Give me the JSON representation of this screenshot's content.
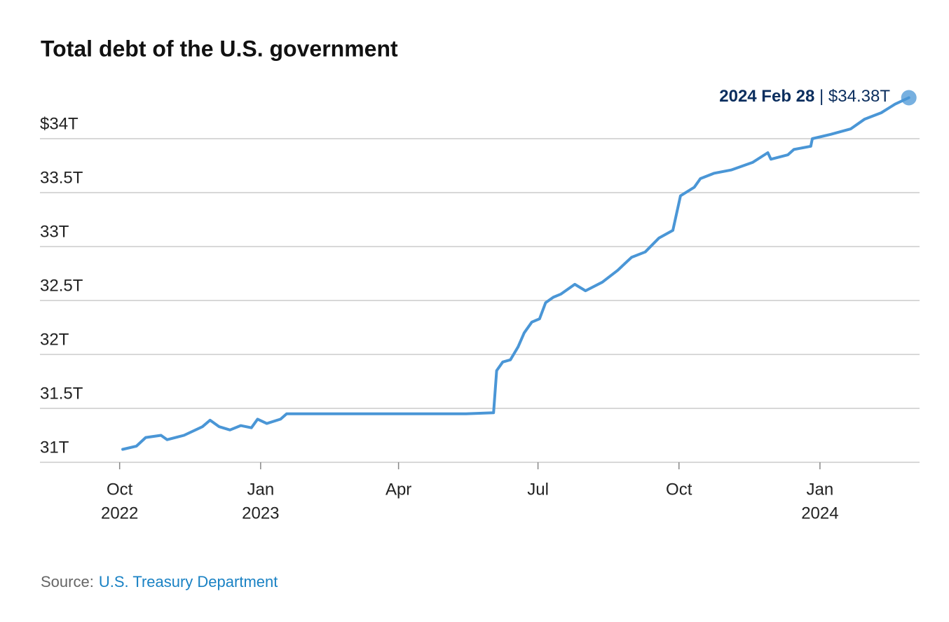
{
  "chart_data": {
    "type": "line",
    "title": "Total debt of the U.S. government",
    "annotation": {
      "date_label": "2024 Feb 28",
      "value_label": "$34.38T"
    },
    "source": {
      "label": "Source:",
      "text": "U.S. Treasury Department"
    },
    "xlim": [
      "2022-08-10",
      "2024-03-06"
    ],
    "xticks": [
      {
        "value": "2022-10-01",
        "label": "Oct",
        "year": "2022"
      },
      {
        "value": "2023-01-01",
        "label": "Jan",
        "year": "2023"
      },
      {
        "value": "2023-04-01",
        "label": "Apr"
      },
      {
        "value": "2023-07-01",
        "label": "Jul"
      },
      {
        "value": "2023-10-01",
        "label": "Oct"
      },
      {
        "value": "2024-01-01",
        "label": "Jan",
        "year": "2024"
      }
    ],
    "ylim": [
      31,
      34.5
    ],
    "yticks": [
      {
        "value": 31,
        "label": "31T"
      },
      {
        "value": 31.5,
        "label": "31.5T"
      },
      {
        "value": 32,
        "label": "32T"
      },
      {
        "value": 32.5,
        "label": "32.5T"
      },
      {
        "value": 33,
        "label": "33T"
      },
      {
        "value": 33.5,
        "label": "33.5T"
      },
      {
        "value": 34,
        "label": "$34T"
      }
    ],
    "grid": true,
    "x": [
      "2022-10-03",
      "2022-10-12",
      "2022-10-18",
      "2022-10-28",
      "2022-11-01",
      "2022-11-12",
      "2022-11-24",
      "2022-11-29",
      "2022-12-05",
      "2022-12-12",
      "2022-12-19",
      "2022-12-26",
      "2022-12-30",
      "2023-01-05",
      "2023-01-14",
      "2023-01-18",
      "2023-02-15",
      "2023-03-15",
      "2023-04-15",
      "2023-05-15",
      "2023-06-02",
      "2023-06-04",
      "2023-06-08",
      "2023-06-13",
      "2023-06-18",
      "2023-06-22",
      "2023-06-27",
      "2023-07-02",
      "2023-07-06",
      "2023-07-11",
      "2023-07-16",
      "2023-07-25",
      "2023-08-01",
      "2023-08-12",
      "2023-08-22",
      "2023-08-31",
      "2023-09-09",
      "2023-09-18",
      "2023-09-27",
      "2023-10-02",
      "2023-10-11",
      "2023-10-15",
      "2023-10-24",
      "2023-11-04",
      "2023-11-18",
      "2023-11-28",
      "2023-11-30",
      "2023-12-11",
      "2023-12-15",
      "2023-12-26",
      "2023-12-27",
      "2024-01-08",
      "2024-01-21",
      "2024-01-30",
      "2024-02-10",
      "2024-02-19",
      "2024-02-28"
    ],
    "series": [
      {
        "name": "Total debt",
        "color": "#4a96d6",
        "values": [
          31.12,
          31.15,
          31.23,
          31.25,
          31.21,
          31.25,
          31.33,
          31.39,
          31.33,
          31.3,
          31.34,
          31.32,
          31.4,
          31.36,
          31.4,
          31.45,
          31.45,
          31.45,
          31.45,
          31.45,
          31.46,
          31.85,
          31.93,
          31.95,
          32.07,
          32.2,
          32.3,
          32.33,
          32.48,
          32.53,
          32.56,
          32.65,
          32.59,
          32.67,
          32.78,
          32.9,
          32.95,
          33.08,
          33.15,
          33.47,
          33.55,
          33.63,
          33.68,
          33.71,
          33.78,
          33.87,
          33.81,
          33.85,
          33.9,
          33.93,
          34.0,
          34.04,
          34.09,
          34.18,
          34.24,
          34.32,
          34.38
        ]
      }
    ]
  }
}
